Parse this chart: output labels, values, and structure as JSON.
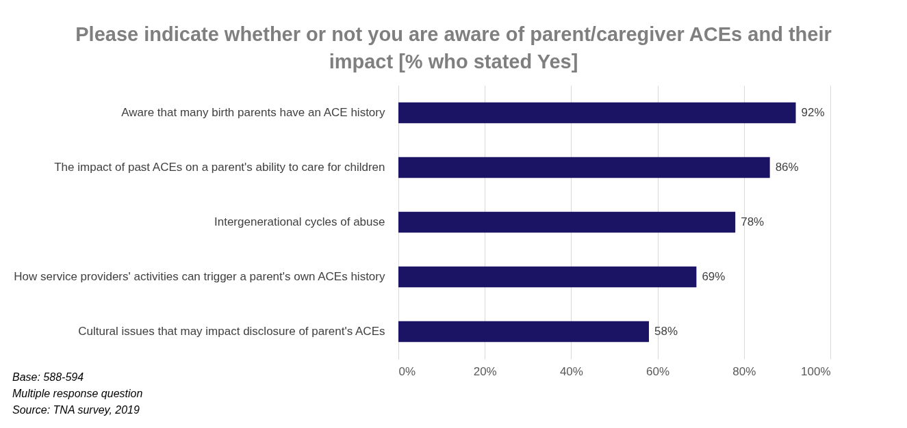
{
  "chart_data": {
    "type": "bar",
    "orientation": "horizontal",
    "title": "Please indicate whether or not you are aware of parent/caregiver ACEs and their impact [% who stated Yes]",
    "categories": [
      "Aware that many birth parents have an ACE history",
      "The impact of past ACEs on a parent's ability to care for children",
      "Intergenerational cycles of abuse",
      "How service providers' activities can trigger a parent's own ACEs history",
      "Cultural issues that may impact disclosure of parent's ACEs"
    ],
    "values": [
      92,
      86,
      78,
      69,
      58
    ],
    "value_labels": [
      "92%",
      "86%",
      "78%",
      "69%",
      "58%"
    ],
    "color": "#1b1464",
    "xlim": [
      0,
      100
    ],
    "xticks": [
      {
        "value": 0,
        "label": "0%"
      },
      {
        "value": 20,
        "label": "20%"
      },
      {
        "value": 40,
        "label": "40%"
      },
      {
        "value": 60,
        "label": "60%"
      },
      {
        "value": 80,
        "label": "80%"
      },
      {
        "value": 100,
        "label": "100%"
      }
    ],
    "grid": "x",
    "annotations": [
      "Base: 588-594",
      "Multiple response question",
      "Source: TNA survey, 2019"
    ]
  }
}
